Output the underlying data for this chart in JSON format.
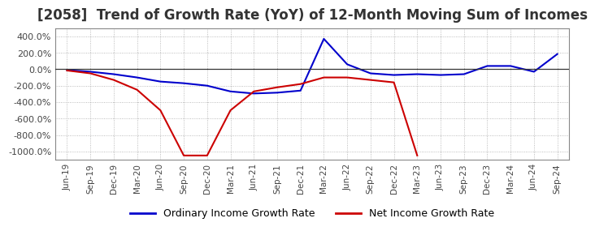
{
  "title": "[2058]  Trend of Growth Rate (YoY) of 12-Month Moving Sum of Incomes",
  "title_fontsize": 12,
  "background_color": "#ffffff",
  "plot_bg_color": "#ffffff",
  "grid_color": "#aaaaaa",
  "ylim": [
    -1100,
    500
  ],
  "yticks": [
    400,
    200,
    0,
    -200,
    -400,
    -600,
    -800,
    -1000
  ],
  "ytick_labels": [
    "400.0%",
    "200.0%",
    "0.0%",
    "-200.0%",
    "-400.0%",
    "-600.0%",
    "-800.0%",
    "-1000.0%"
  ],
  "x_labels": [
    "Jun-19",
    "Sep-19",
    "Dec-19",
    "Mar-20",
    "Jun-20",
    "Sep-20",
    "Dec-20",
    "Mar-21",
    "Jun-21",
    "Sep-21",
    "Dec-21",
    "Mar-22",
    "Jun-22",
    "Sep-22",
    "Dec-22",
    "Mar-23",
    "Jun-23",
    "Sep-23",
    "Dec-23",
    "Mar-24",
    "Jun-24",
    "Sep-24"
  ],
  "ordinary_income": [
    -10,
    -30,
    -60,
    -100,
    -150,
    -170,
    -200,
    -270,
    -295,
    -285,
    -260,
    370,
    60,
    -50,
    -70,
    -60,
    -70,
    -60,
    40,
    40,
    -30,
    185
  ],
  "net_income": [
    -15,
    -50,
    -130,
    -250,
    -500,
    -1050,
    -1050,
    -500,
    -270,
    -220,
    -180,
    -100,
    -100,
    -130,
    -160,
    -1050,
    null,
    null,
    null,
    null,
    null,
    null
  ],
  "ordinary_color": "#0000cc",
  "net_income_color": "#cc0000",
  "line_width": 1.5,
  "legend_labels": [
    "Ordinary Income Growth Rate",
    "Net Income Growth Rate"
  ]
}
